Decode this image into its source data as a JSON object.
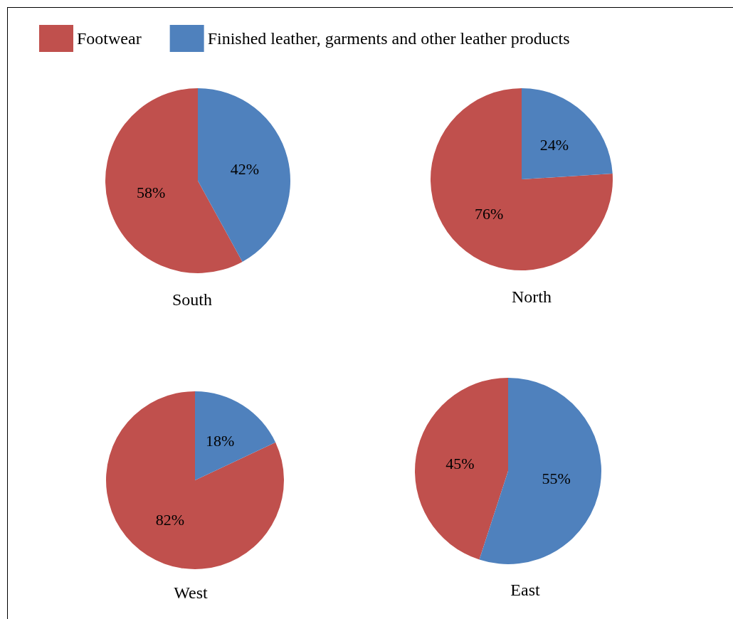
{
  "chart_data": [
    {
      "type": "pie",
      "title": "South",
      "categories": [
        "Footwear",
        "Finished leather, garments and other leather products"
      ],
      "values": [
        58,
        42
      ],
      "value_labels": [
        "58%",
        "42%"
      ],
      "colors": [
        "#c0504d",
        "#4f81bd"
      ],
      "legend": "top right"
    },
    {
      "type": "pie",
      "title": "North",
      "categories": [
        null,
        null
      ],
      "values": [
        76,
        24
      ],
      "value_labels": [
        "76%",
        "24%"
      ],
      "colors": [
        "#c0504d",
        "#4f81bd"
      ]
    },
    {
      "type": "pie",
      "title": "West",
      "categories": [
        null,
        null
      ],
      "values": [
        82,
        18
      ],
      "value_labels": [
        "82%",
        "18%"
      ],
      "colors": [
        "#c0504d",
        "#4f81bd"
      ]
    },
    {
      "type": "pie",
      "title": "East",
      "categories": [
        null,
        null
      ],
      "values": [
        45,
        55
      ],
      "value_labels": [
        "45%",
        "55%"
      ],
      "colors": [
        "#c0504d",
        "#4f81bd"
      ]
    }
  ]
}
